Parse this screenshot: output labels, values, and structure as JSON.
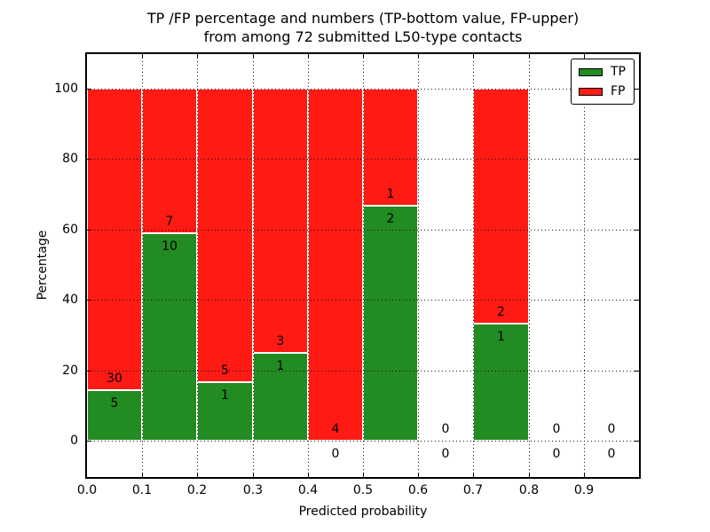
{
  "chart_data": {
    "type": "bar",
    "stacked": true,
    "title_line1": "TP /FP percentage and numbers (TP-bottom value, FP-upper)",
    "title_line2": "from among 72 submitted L50-type contacts",
    "xlabel": "Predicted probability",
    "ylabel": "Percentage",
    "xlim": [
      0.0,
      1.0
    ],
    "ylim": [
      -10,
      110
    ],
    "grid": "dotted black, on",
    "legend_position": "upper right",
    "x_ticks": [
      "0.0",
      "0.1",
      "0.2",
      "0.3",
      "0.4",
      "0.5",
      "0.6",
      "0.7",
      "0.8",
      "0.9"
    ],
    "y_ticks": [
      "0",
      "20",
      "40",
      "60",
      "80",
      "100"
    ],
    "bin_width": 0.1,
    "series": [
      {
        "name": "TP",
        "color": "#228b22",
        "values": [
          5,
          10,
          1,
          1,
          0,
          2,
          0,
          1,
          0,
          0
        ]
      },
      {
        "name": "FP",
        "color": "#ff1a14",
        "values": [
          30,
          7,
          5,
          3,
          4,
          1,
          0,
          2,
          0,
          0
        ]
      }
    ],
    "bins": [
      {
        "range": [
          0.0,
          0.1
        ],
        "tp": 5,
        "fp": 30,
        "tp_pct": 14.29,
        "fp_pct": 85.71
      },
      {
        "range": [
          0.1,
          0.2
        ],
        "tp": 10,
        "fp": 7,
        "tp_pct": 58.82,
        "fp_pct": 41.18
      },
      {
        "range": [
          0.2,
          0.3
        ],
        "tp": 1,
        "fp": 5,
        "tp_pct": 16.67,
        "fp_pct": 83.33
      },
      {
        "range": [
          0.3,
          0.4
        ],
        "tp": 1,
        "fp": 3,
        "tp_pct": 25.0,
        "fp_pct": 75.0
      },
      {
        "range": [
          0.4,
          0.5
        ],
        "tp": 0,
        "fp": 4,
        "tp_pct": 0.0,
        "fp_pct": 100.0
      },
      {
        "range": [
          0.5,
          0.6
        ],
        "tp": 2,
        "fp": 1,
        "tp_pct": 66.67,
        "fp_pct": 33.33
      },
      {
        "range": [
          0.6,
          0.7
        ],
        "tp": 0,
        "fp": 0,
        "tp_pct": 0.0,
        "fp_pct": 0.0
      },
      {
        "range": [
          0.7,
          0.8
        ],
        "tp": 1,
        "fp": 2,
        "tp_pct": 33.33,
        "fp_pct": 66.67
      },
      {
        "range": [
          0.8,
          0.9
        ],
        "tp": 0,
        "fp": 0,
        "tp_pct": 0.0,
        "fp_pct": 0.0
      },
      {
        "range": [
          0.9,
          1.0
        ],
        "tp": 0,
        "fp": 0,
        "tp_pct": 0.0,
        "fp_pct": 0.0
      }
    ],
    "legend": [
      {
        "label": "TP",
        "color": "#228b22"
      },
      {
        "label": "FP",
        "color": "#ff1a14"
      }
    ],
    "colors": {
      "tp": "#228b22",
      "fp": "#ff1a14",
      "grid": "#111111",
      "frame": "#000000"
    }
  }
}
